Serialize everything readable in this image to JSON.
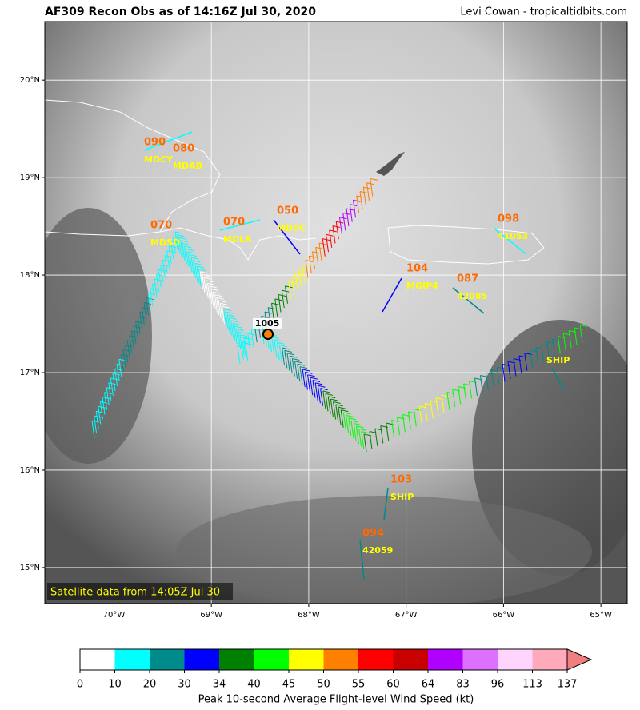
{
  "header": {
    "title": "AF309 Recon Obs as of 14:16Z Jul 30, 2020",
    "credit": "Levi Cowan - tropicaltidbits.com"
  },
  "map": {
    "xlim": [
      -70.71,
      -64.73
    ],
    "ylim": [
      14.63,
      20.6
    ],
    "xticks": [
      {
        "value": -70,
        "label": "70°W"
      },
      {
        "value": -69,
        "label": "69°W"
      },
      {
        "value": -68,
        "label": "68°W"
      },
      {
        "value": -67,
        "label": "67°W"
      },
      {
        "value": -66,
        "label": "66°W"
      },
      {
        "value": -65,
        "label": "65°W"
      }
    ],
    "yticks": [
      {
        "value": 15,
        "label": "15°N"
      },
      {
        "value": 16,
        "label": "16°N"
      },
      {
        "value": 17,
        "label": "17°N"
      },
      {
        "value": 18,
        "label": "18°N"
      },
      {
        "value": 19,
        "label": "19°N"
      },
      {
        "value": 20,
        "label": "20°N"
      }
    ],
    "stations": [
      {
        "value": "090",
        "name": "MDCY"
      },
      {
        "value": "080",
        "name": "MDAB"
      },
      {
        "value": "070",
        "name": "MDSD"
      },
      {
        "value": "070",
        "name": "MDLR"
      },
      {
        "value": "050",
        "name": "MDPC"
      },
      {
        "value": "104",
        "name": "MGIP4"
      },
      {
        "value": "087",
        "name": "42085"
      },
      {
        "value": "098",
        "name": "41053"
      },
      {
        "name": "SHIP"
      },
      {
        "value": "103",
        "name": "SHIP"
      },
      {
        "value": "094",
        "name": "42059"
      }
    ],
    "center_pressure": "1005",
    "note": "Satellite data from 14:05Z Jul 30"
  },
  "colorbar": {
    "ticks": [
      0,
      10,
      20,
      30,
      34,
      40,
      45,
      50,
      55,
      60,
      64,
      83,
      96,
      113,
      137
    ],
    "colors": [
      "#ffffff",
      "#00ffff",
      "#008b8b",
      "#0000ff",
      "#008000",
      "#00ff00",
      "#ffff00",
      "#ff7f00",
      "#ff0000",
      "#c80000",
      "#b000ff",
      "#dd70ff",
      "#ffd5ff",
      "#ffaabb"
    ],
    "extend_color": "#f08080",
    "label": "Peak 10-second Average Flight-level Wind Speed (kt)"
  }
}
